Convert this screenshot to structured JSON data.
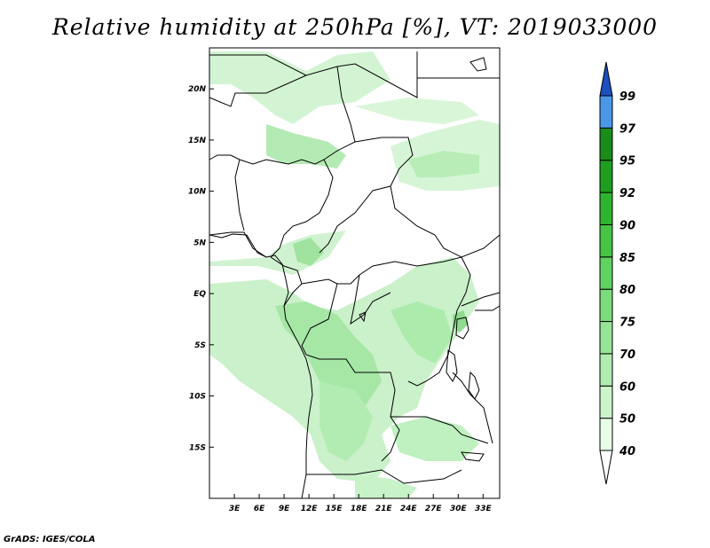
{
  "title": "Relative humidity at 250hPa [%], VT: 2019033000",
  "credit": "GrADS: IGES/COLA",
  "map": {
    "lon_range": [
      0,
      35
    ],
    "lat_range": [
      -20,
      24
    ],
    "lat_ticks": [
      "20N",
      "15N",
      "10N",
      "5N",
      "EQ",
      "5S",
      "10S",
      "15S"
    ],
    "lat_tick_values": [
      20,
      15,
      10,
      5,
      0,
      -5,
      -10,
      -15
    ],
    "lon_ticks": [
      "3E",
      "6E",
      "9E",
      "12E",
      "15E",
      "18E",
      "21E",
      "24E",
      "27E",
      "30E",
      "33E"
    ],
    "lon_tick_values": [
      3,
      6,
      9,
      12,
      15,
      18,
      21,
      24,
      27,
      30,
      33
    ]
  },
  "colorbar": {
    "levels": [
      "40",
      "50",
      "60",
      "70",
      "75",
      "80",
      "85",
      "90",
      "92",
      "95",
      "97",
      "99"
    ],
    "colors": [
      "#e6ffe6",
      "#ccf5cc",
      "#b0ecb0",
      "#96e496",
      "#7bdc7b",
      "#5fd25f",
      "#46c446",
      "#2fb42f",
      "#1e9e1e",
      "#198c19",
      "#4a97e8",
      "#2f6fd8",
      "#1d4fc0"
    ]
  }
}
